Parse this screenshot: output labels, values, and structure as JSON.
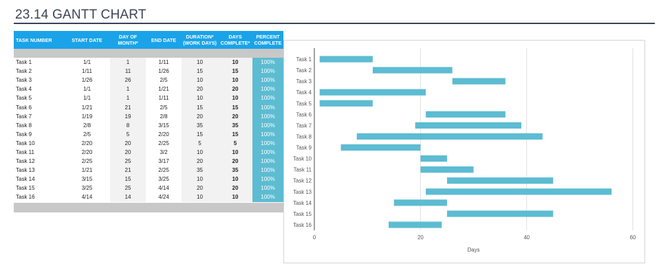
{
  "page_title": "23.14 GANTT CHART",
  "table": {
    "headers": [
      [
        "TASK NUMBER"
      ],
      [
        "START DATE"
      ],
      [
        "DAY OF",
        "MONTH*"
      ],
      [
        "END DATE"
      ],
      [
        "DURATION*",
        "(WORK DAYS)"
      ],
      [
        "DAYS",
        "COMPLETE*"
      ],
      [
        "PERCENT",
        "COMPLETE"
      ]
    ],
    "rows": [
      [
        "Task 1",
        "1/1",
        "1",
        "1/11",
        "10",
        "10",
        "100%"
      ],
      [
        "Task 2",
        "1/11",
        "11",
        "1/26",
        "15",
        "15",
        "100%"
      ],
      [
        "Task 3",
        "1/26",
        "26",
        "2/5",
        "10",
        "10",
        "100%"
      ],
      [
        "Task 4",
        "1/1",
        "1",
        "1/21",
        "20",
        "20",
        "100%"
      ],
      [
        "Task 5",
        "1/1",
        "1",
        "1/11",
        "10",
        "10",
        "100%"
      ],
      [
        "Task 6",
        "1/21",
        "21",
        "2/5",
        "15",
        "15",
        "100%"
      ],
      [
        "Task 7",
        "1/19",
        "19",
        "2/8",
        "20",
        "20",
        "100%"
      ],
      [
        "Task 8",
        "2/8",
        "8",
        "3/15",
        "35",
        "35",
        "100%"
      ],
      [
        "Task 9",
        "2/5",
        "5",
        "2/20",
        "15",
        "15",
        "100%"
      ],
      [
        "Task 10",
        "2/20",
        "20",
        "2/25",
        "5",
        "5",
        "100%"
      ],
      [
        "Task 11",
        "2/20",
        "20",
        "3/2",
        "10",
        "10",
        "100%"
      ],
      [
        "Task 12",
        "2/25",
        "25",
        "3/17",
        "20",
        "20",
        "100%"
      ],
      [
        "Task 13",
        "1/21",
        "21",
        "2/25",
        "35",
        "35",
        "100%"
      ],
      [
        "Task 14",
        "3/15",
        "15",
        "3/25",
        "10",
        "10",
        "100%"
      ],
      [
        "Task 15",
        "3/25",
        "25",
        "4/14",
        "20",
        "20",
        "100%"
      ],
      [
        "Task 16",
        "4/14",
        "14",
        "4/24",
        "10",
        "10",
        "100%"
      ]
    ]
  },
  "chart_data": {
    "type": "bar",
    "orientation": "horizontal",
    "stacked": true,
    "categories": [
      "Task 1",
      "Task 2",
      "Task 3",
      "Task 4",
      "Task 5",
      "Task 6",
      "Task 7",
      "Task 8",
      "Task 9",
      "Task 10",
      "Task 11",
      "Task 12",
      "Task 13",
      "Task 14",
      "Task 15",
      "Task 16"
    ],
    "start": [
      1,
      11,
      26,
      1,
      1,
      21,
      19,
      8,
      5,
      20,
      20,
      25,
      21,
      15,
      25,
      14
    ],
    "duration": [
      10,
      15,
      10,
      20,
      10,
      15,
      20,
      35,
      15,
      5,
      10,
      20,
      35,
      10,
      20,
      10
    ],
    "xlabel": "Days",
    "xlim": [
      0,
      60
    ],
    "xticks": [
      0,
      20,
      40,
      60
    ],
    "bar_color": "#5dbcd2",
    "grid": "vertical",
    "legend": "none"
  }
}
